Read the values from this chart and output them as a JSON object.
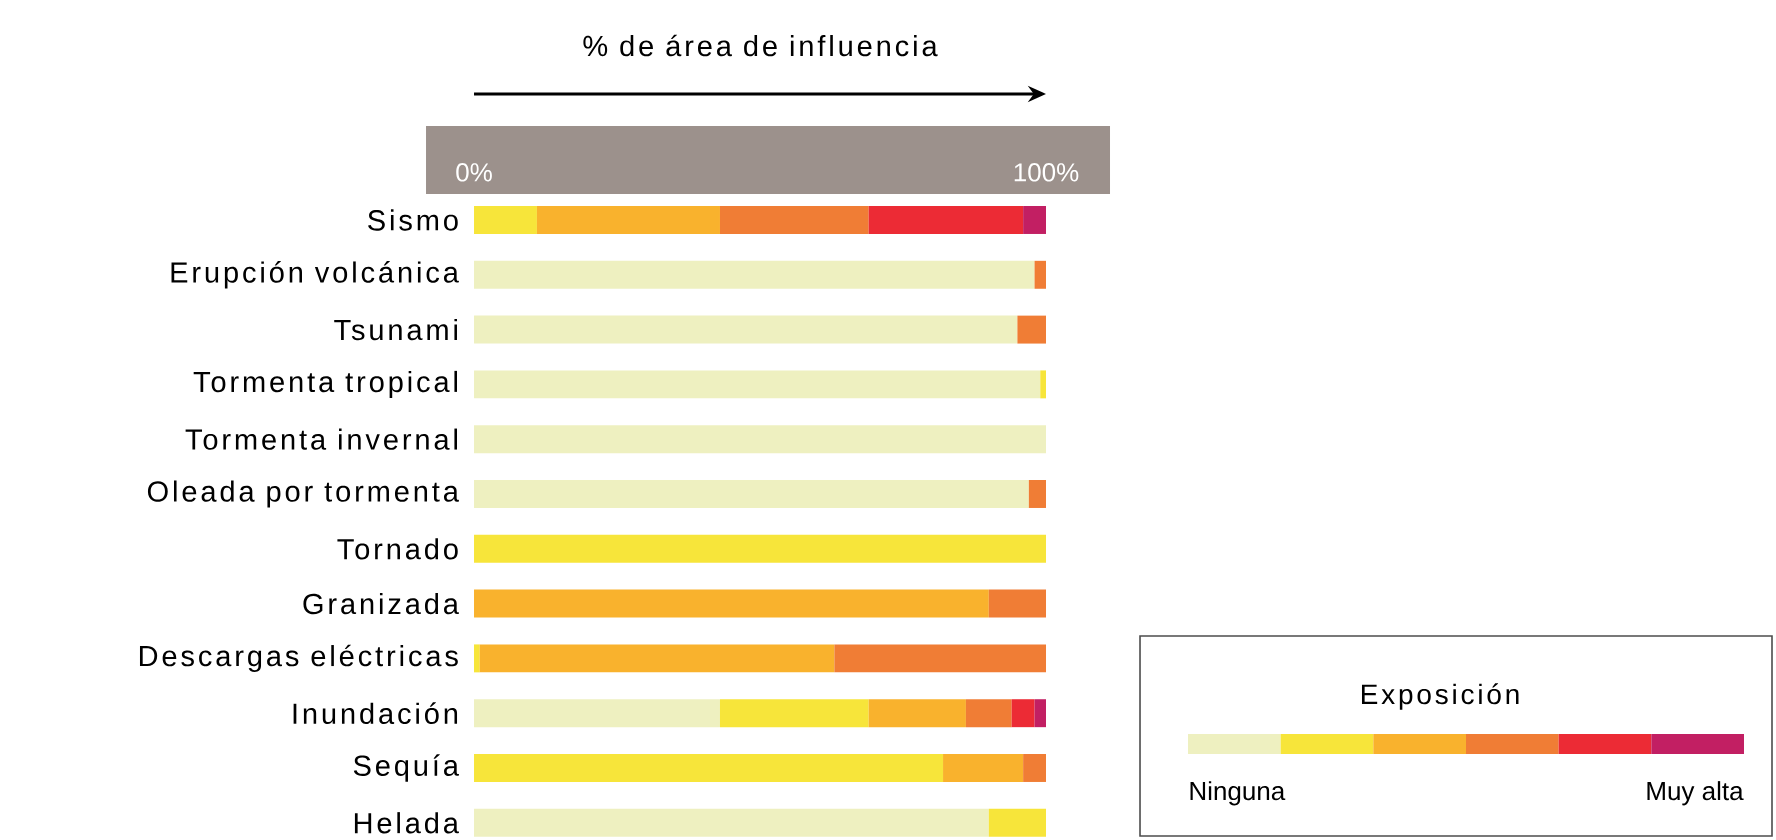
{
  "chart_data": {
    "type": "bar",
    "orientation": "horizontal",
    "stacked": true,
    "xlabel": "% de área de influencia",
    "legend_title": "Exposición",
    "legend": "bottom right",
    "categories": [
      "Sismo",
      "Erupción volcánica",
      "Tsunami",
      "Tormenta tropical",
      "Tormenta invernal",
      "Oleada por tormenta",
      "Tornado",
      "Granizada",
      "Descargas eléctricas",
      "Inundación",
      "Sequía",
      "Helada"
    ],
    "xlim": [
      0,
      100
    ],
    "xticks": [
      {
        "value": 0,
        "label": "0%"
      },
      {
        "value": 100,
        "label": "100%"
      }
    ],
    "series": [
      {
        "name": "Ninguna",
        "color": "#eef0c0",
        "values": [
          null,
          98,
          95,
          99,
          100,
          97,
          null,
          null,
          null,
          43,
          null,
          90
        ]
      },
      {
        "color": "#f7e53a",
        "values": [
          11,
          null,
          null,
          1,
          null,
          null,
          100,
          null,
          1,
          26,
          82,
          10
        ]
      },
      {
        "color": "#f9b22d",
        "values": [
          32,
          null,
          null,
          null,
          null,
          null,
          null,
          90,
          62,
          17,
          14,
          null
        ]
      },
      {
        "color": "#f07d35",
        "values": [
          26,
          2,
          5,
          null,
          null,
          3,
          null,
          10,
          37,
          8,
          4,
          null
        ]
      },
      {
        "color": "#ec2b35",
        "values": [
          27,
          null,
          null,
          null,
          null,
          null,
          null,
          null,
          null,
          4,
          null,
          null
        ]
      },
      {
        "name": "Muy alta",
        "color": "#c21f63",
        "values": [
          4,
          null,
          null,
          null,
          null,
          null,
          null,
          null,
          null,
          2,
          null,
          null
        ]
      }
    ]
  }
}
